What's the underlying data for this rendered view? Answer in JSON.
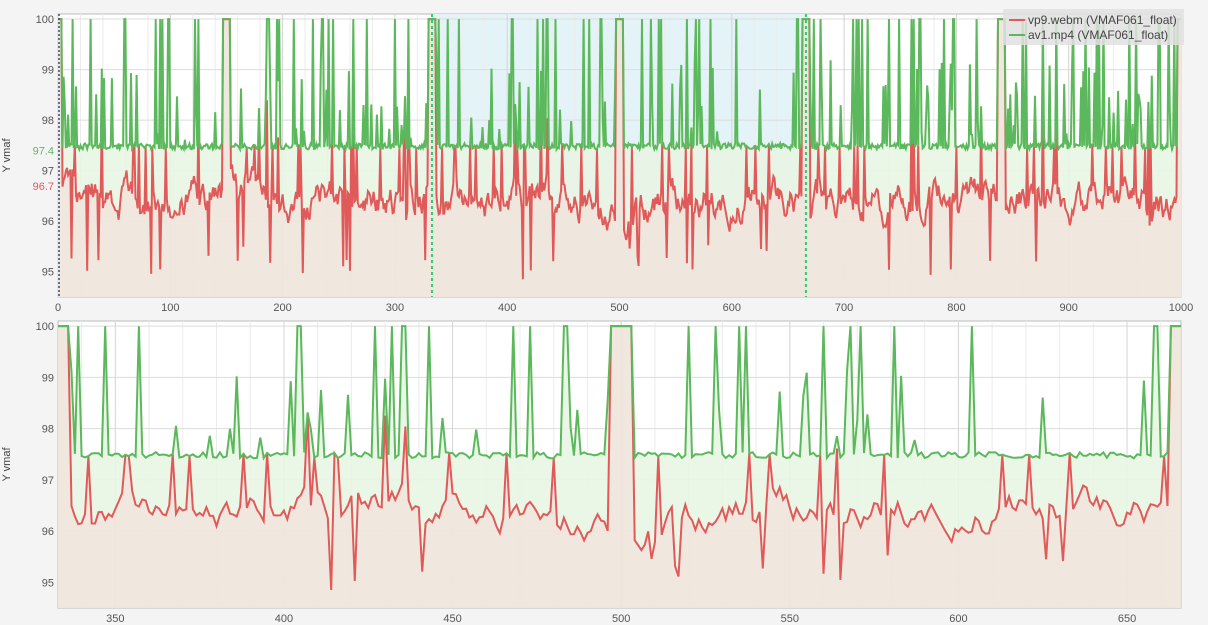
{
  "chart_data": [
    {
      "type": "line",
      "name": "overview",
      "ylabel": "Y vmaf",
      "xlim": [
        0,
        1000
      ],
      "ylim": [
        94.5,
        100.1
      ],
      "x_ticks": [
        "0",
        "100",
        "200",
        "300",
        "400",
        "500",
        "600",
        "700",
        "800",
        "900",
        "1000"
      ],
      "y_ticks": [
        "95",
        "96",
        "97",
        "98",
        "99",
        "100"
      ],
      "grid": true,
      "legend": "top-right",
      "selection": [
        333,
        666
      ],
      "avg_labels": [
        {
          "series": "av1.mp4 (VMAF061_float)",
          "value": "97.4",
          "color": "#5cb85c"
        },
        {
          "series": "vp9.webm (VMAF061_float)",
          "value": "96.7",
          "color": "#e05a5a"
        }
      ],
      "series": [
        {
          "name": "vp9.webm (VMAF061_float)",
          "color": "#e05a5a",
          "baseline": 96.4,
          "peak_top": 98.4,
          "low": 94.9,
          "keyframes": [
            0,
            150,
            333,
            500,
            666,
            840,
            1000
          ]
        },
        {
          "name": "av1.mp4 (VMAF061_float)",
          "color": "#5cb85c",
          "baseline": 97.45,
          "peak_top": 100.0,
          "keyframes": [
            0,
            150,
            333,
            500,
            666,
            840,
            1000
          ]
        }
      ]
    },
    {
      "type": "line",
      "name": "zoom",
      "ylabel": "Y vmaf",
      "xlim": [
        333,
        666
      ],
      "ylim": [
        94.5,
        100.1
      ],
      "x_ticks": [
        "350",
        "400",
        "450",
        "500",
        "550",
        "600",
        "650"
      ],
      "y_ticks": [
        "95",
        "96",
        "97",
        "98",
        "99",
        "100"
      ],
      "grid": true,
      "series": [
        {
          "name": "vp9.webm (VMAF061_float)",
          "color": "#e05a5a"
        },
        {
          "name": "av1.mp4 (VMAF061_float)",
          "color": "#5cb85c"
        }
      ]
    }
  ],
  "legend": {
    "items": [
      {
        "label": "vp9.webm (VMAF061_float)",
        "color": "#e05a5a"
      },
      {
        "label": "av1.mp4 (VMAF061_float)",
        "color": "#5cb85c"
      }
    ]
  },
  "colors": {
    "plot_bg": "#ffffff",
    "fill_base": "#efe6dc",
    "fill_green": "#e8f5e3",
    "selection_fill": "#e4f3f7",
    "selection_line": "#2ecc71"
  }
}
